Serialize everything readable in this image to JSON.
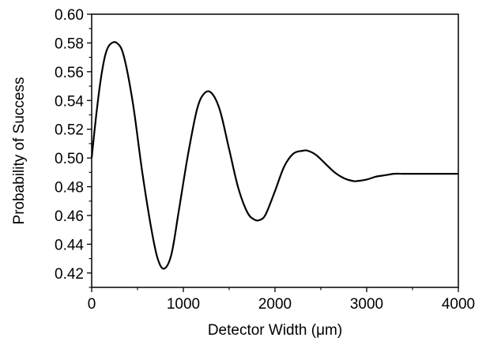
{
  "chart_data": {
    "type": "line",
    "title": "",
    "xlabel": "Detector Width (μm)",
    "ylabel": "Probability of Success",
    "xlim": [
      0,
      4000
    ],
    "ylim": [
      0.41,
      0.6
    ],
    "xticks": [
      0,
      1000,
      2000,
      3000,
      4000
    ],
    "xtick_labels": [
      "0",
      "1000",
      "2000",
      "3000",
      "4000"
    ],
    "yticks": [
      0.42,
      0.44,
      0.46,
      0.48,
      0.5,
      0.52,
      0.54,
      0.56,
      0.58,
      0.6
    ],
    "ytick_labels": [
      "0.42",
      "0.44",
      "0.46",
      "0.48",
      "0.50",
      "0.52",
      "0.54",
      "0.56",
      "0.58",
      "0.60"
    ],
    "grid": false,
    "legend": "none",
    "line_color": "#000000",
    "series": [
      {
        "x": [
          0,
          50,
          100,
          150,
          200,
          275,
          350,
          450,
          550,
          650,
          720,
          790,
          870,
          950,
          1050,
          1150,
          1230,
          1310,
          1400,
          1500,
          1600,
          1700,
          1780,
          1840,
          1900,
          2000,
          2100,
          2200,
          2300,
          2360,
          2450,
          2550,
          2650,
          2750,
          2850,
          2900,
          3000,
          3100,
          3200,
          3300,
          3400,
          3500,
          3700,
          4000
        ],
        "y": [
          0.5,
          0.53,
          0.555,
          0.572,
          0.579,
          0.58,
          0.571,
          0.538,
          0.491,
          0.451,
          0.43,
          0.423,
          0.433,
          0.463,
          0.502,
          0.534,
          0.545,
          0.545,
          0.533,
          0.506,
          0.479,
          0.462,
          0.457,
          0.457,
          0.461,
          0.477,
          0.494,
          0.503,
          0.505,
          0.505,
          0.502,
          0.496,
          0.49,
          0.486,
          0.484,
          0.484,
          0.485,
          0.487,
          0.488,
          0.489,
          0.489,
          0.489,
          0.489,
          0.489
        ]
      }
    ]
  }
}
